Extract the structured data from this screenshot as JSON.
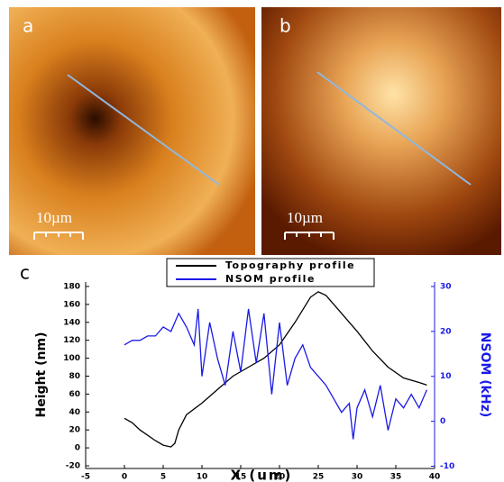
{
  "panels": [
    {
      "label": "a",
      "scale": "10µm"
    },
    {
      "label": "b",
      "scale": "10µm"
    },
    {
      "label": "c"
    }
  ],
  "chart_data": {
    "type": "line",
    "x_label": "X (um)",
    "y_label": "Height (nm)",
    "y2_label": "NSOM (kHz)",
    "xlim": [
      -5,
      40
    ],
    "xticks": [
      -5,
      0,
      5,
      10,
      15,
      20,
      25,
      30,
      35,
      40
    ],
    "ylim": [
      -23,
      185
    ],
    "yticks": [
      -20,
      0,
      20,
      40,
      60,
      80,
      100,
      120,
      140,
      160,
      180
    ],
    "y2lim": [
      -10.5,
      31
    ],
    "y2ticks": [
      -10,
      0,
      10,
      20,
      30
    ],
    "series": [
      {
        "name": "Topography profile",
        "color": "#000000",
        "axis": "y",
        "x": [
          0,
          1,
          2,
          4,
          5,
          6,
          6.5,
          7,
          8,
          10,
          12,
          14,
          16,
          18,
          20,
          22,
          24,
          25,
          26,
          28,
          30,
          32,
          34,
          36,
          38,
          39
        ],
        "values": [
          33,
          28,
          20,
          8,
          3,
          1,
          5,
          20,
          37,
          50,
          65,
          80,
          90,
          100,
          115,
          140,
          168,
          174,
          170,
          150,
          130,
          108,
          90,
          78,
          73,
          70
        ]
      },
      {
        "name": "NSOM profile",
        "color": "#1a1ae6",
        "axis": "y2",
        "x": [
          0,
          1,
          2,
          3,
          4,
          5,
          6,
          7,
          8,
          9,
          9.5,
          10,
          11,
          12,
          13,
          14,
          15,
          16,
          17,
          18,
          19,
          20,
          21,
          22,
          23,
          24,
          25,
          26,
          27,
          28,
          29,
          29.5,
          30,
          31,
          32,
          33,
          34,
          35,
          36,
          37,
          38,
          39
        ],
        "values": [
          17,
          18,
          18,
          19,
          19,
          21,
          20,
          24,
          21,
          17,
          25,
          10,
          22,
          14,
          8,
          20,
          11,
          25,
          13,
          24,
          6,
          22,
          8,
          14,
          17,
          12,
          10,
          8,
          5,
          2,
          4,
          -4,
          3,
          7,
          1,
          8,
          -2,
          5,
          3,
          6,
          3,
          7
        ]
      }
    ]
  }
}
